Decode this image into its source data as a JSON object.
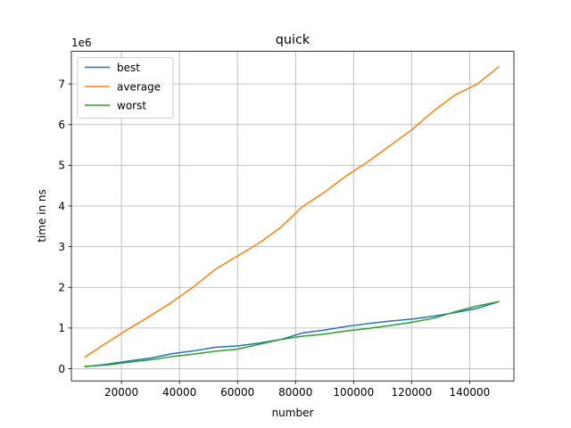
{
  "chart_data": {
    "type": "line",
    "title": "quick",
    "xlabel": "number",
    "ylabel": "time in ns",
    "y_offset_label": "1e6",
    "y_scale": 1000000,
    "xlim": [
      2750,
      155250
    ],
    "ylim": [
      -300000,
      7800000
    ],
    "x_ticks": [
      20000,
      40000,
      60000,
      80000,
      100000,
      120000,
      140000
    ],
    "x_tick_labels": [
      "20000",
      "40000",
      "60000",
      "80000",
      "100000",
      "120000",
      "140000"
    ],
    "y_ticks": [
      0,
      1000000,
      2000000,
      3000000,
      4000000,
      5000000,
      6000000,
      7000000
    ],
    "y_tick_labels": [
      "0",
      "1",
      "2",
      "3",
      "4",
      "5",
      "6",
      "7"
    ],
    "grid": true,
    "legend_position": "upper-left",
    "x": [
      7500,
      15000,
      22500,
      30000,
      37500,
      45000,
      52500,
      60000,
      67500,
      75000,
      82500,
      90000,
      97500,
      105000,
      112500,
      120000,
      127500,
      135000,
      142500,
      150000
    ],
    "series": [
      {
        "name": "best",
        "color": "#1f77b4",
        "values": [
          50000,
          110000,
          190000,
          260000,
          370000,
          440000,
          530000,
          560000,
          630000,
          720000,
          880000,
          950000,
          1040000,
          1110000,
          1170000,
          1220000,
          1290000,
          1380000,
          1480000,
          1650000
        ]
      },
      {
        "name": "average",
        "color": "#ff7f0e",
        "values": [
          290000,
          640000,
          980000,
          1300000,
          1640000,
          2020000,
          2450000,
          2770000,
          3090000,
          3480000,
          3990000,
          4340000,
          4740000,
          5090000,
          5480000,
          5870000,
          6330000,
          6730000,
          6990000,
          7420000
        ]
      },
      {
        "name": "worst",
        "color": "#2ca02c",
        "values": [
          60000,
          90000,
          160000,
          220000,
          300000,
          360000,
          430000,
          480000,
          600000,
          720000,
          800000,
          850000,
          930000,
          990000,
          1060000,
          1140000,
          1240000,
          1400000,
          1540000,
          1650000
        ]
      }
    ]
  }
}
